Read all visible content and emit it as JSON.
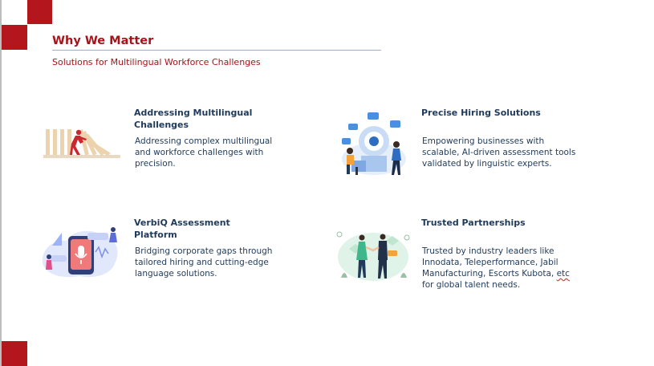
{
  "header": {
    "title": "Why We Matter",
    "subtitle": "Solutions for Multilingual Workforce Challenges"
  },
  "cards": [
    {
      "title_line1": "Addressing  Multilingual",
      "title_line2": "Challenges",
      "lines": [
        "Addressing complex multilingual",
        "and workforce challenges with",
        "precision."
      ],
      "icon": "domino-push-illustration"
    },
    {
      "title_line1": "Precise Hiring Solutions",
      "lines": [
        "Empowering businesses with",
        "scalable, AI-driven assessment tools",
        "validated by linguistic experts."
      ],
      "icon": "hiring-assessment-illustration"
    },
    {
      "title_line1": "VerbiQ Assessment",
      "title_line2": "Platform",
      "lines": [
        "Bridging corporate gaps through",
        "tailored hiring and cutting-edge",
        "language solutions."
      ],
      "icon": "voice-platform-illustration"
    },
    {
      "title_line1": "Trusted Partnerships",
      "lines": [
        "Trusted by industry leaders like",
        "Innodata, Teleperformance, Jabil",
        "Manufacturing, Escorts Kubota, "
      ],
      "etc": "etc",
      "line4": "for global talent needs.",
      "icon": "handshake-partnership-illustration"
    }
  ]
}
